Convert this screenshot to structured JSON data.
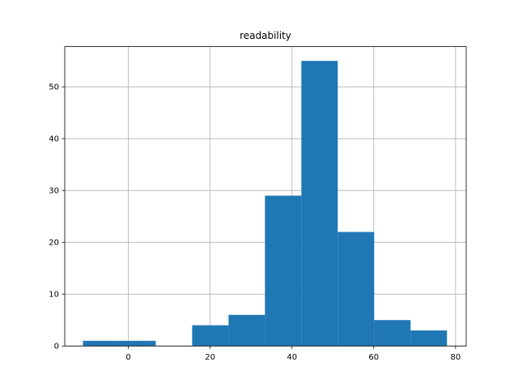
{
  "chart_data": {
    "type": "histogram",
    "title": "readability",
    "bins": [
      -11.1,
      -2.2,
      6.7,
      15.6,
      24.5,
      33.4,
      42.3,
      51.2,
      60.1,
      69.0,
      77.9
    ],
    "counts": [
      1,
      1,
      0,
      4,
      6,
      29,
      55,
      22,
      5,
      3
    ],
    "color": "#1f77b4",
    "xlim": [
      -15.55,
      82.6
    ],
    "xticks": [
      0,
      20,
      40,
      60,
      80
    ],
    "ylim": [
      0,
      57.75
    ],
    "yticks": [
      0,
      10,
      20,
      30,
      40,
      50
    ],
    "grid": true
  }
}
